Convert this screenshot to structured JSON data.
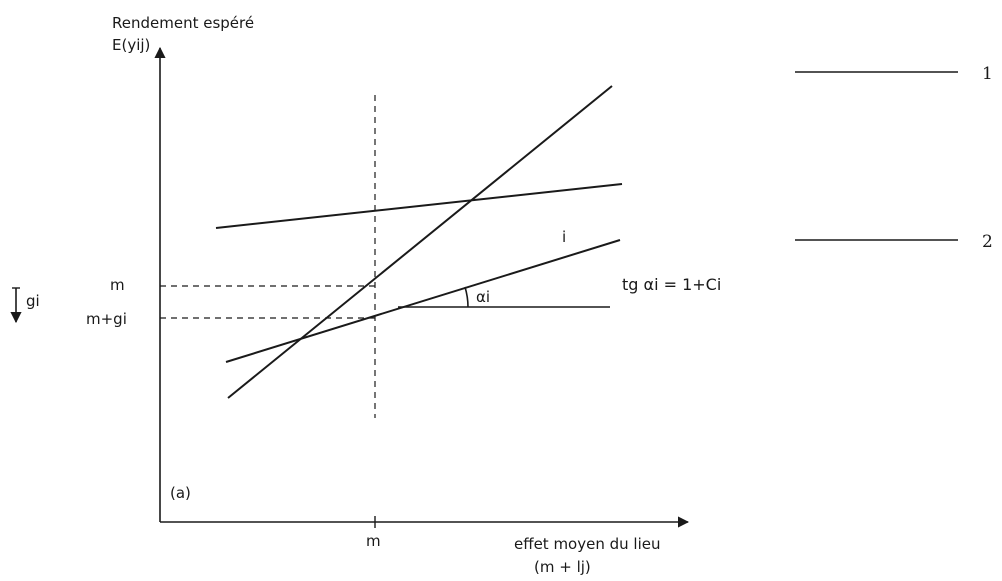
{
  "diagram": {
    "y_axis_title": "Rendement espéré",
    "y_axis_var": "E(yij)",
    "x_axis_title": "effet moyen du lieu",
    "x_axis_var": "(m + lj)",
    "x_tick_m": "m",
    "y_tick_m": "m",
    "y_tick_mg": "m+gi",
    "gi_label": "gi",
    "panel_label": "(a)",
    "line_i_label": "i",
    "angle_label": "αi",
    "formula": "tg αi = 1+Ci",
    "legend": [
      {
        "label": "1"
      },
      {
        "label": "2"
      }
    ]
  }
}
